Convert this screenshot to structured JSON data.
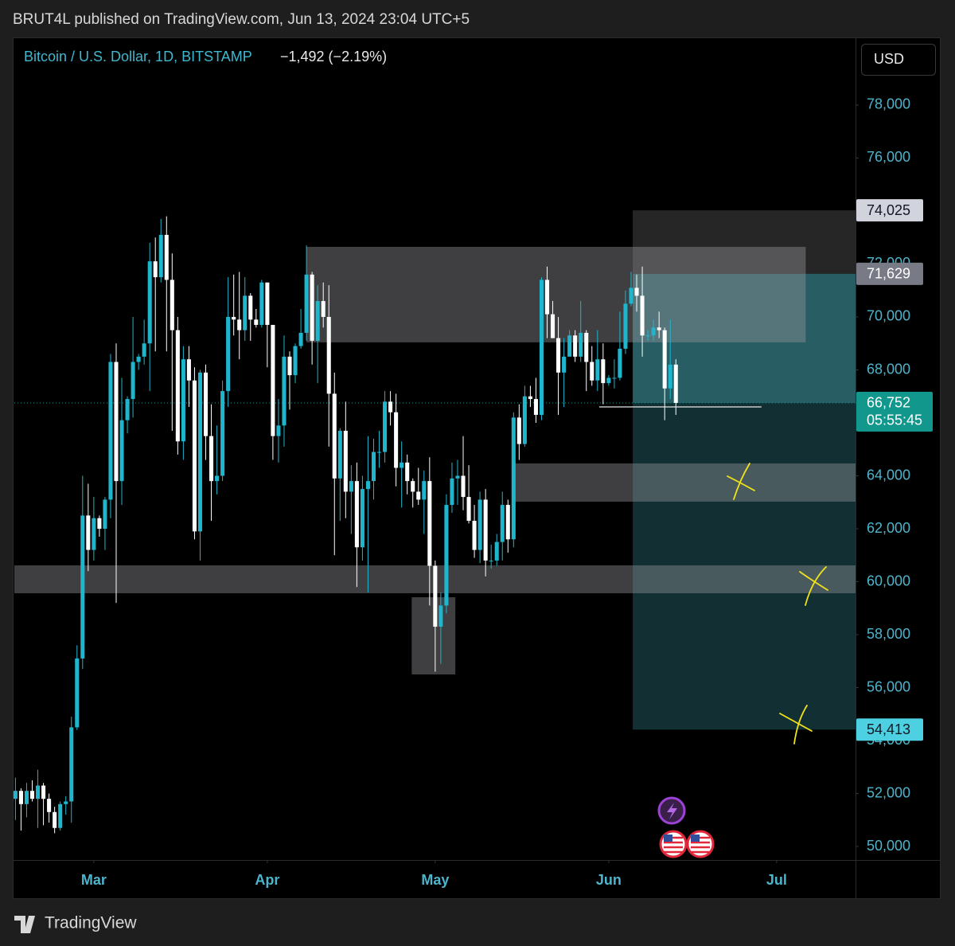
{
  "header": {
    "publisher_line": "BRUT4L published on TradingView.com, Jun 13, 2024 23:04 UTC+5"
  },
  "chart_data": {
    "type": "candlestick",
    "title": "Bitcoin / U.S. Dollar, 1D, BITSTAMP",
    "subtitle": "−1,492 (−2.19%)",
    "currency": "USD",
    "up_color": "#1fb5cc",
    "down_color": "#ffffff",
    "open": [
      51800,
      52100,
      51600,
      52100,
      51800,
      52300,
      51800,
      51300,
      50700,
      51600,
      51700,
      54500,
      57100,
      62500,
      61200,
      62400,
      62000,
      63100,
      68300,
      63800,
      66100,
      66900,
      68300,
      68500,
      69000,
      72100,
      71500,
      73100,
      71400,
      69500,
      65300,
      68400,
      67600,
      61900,
      67900,
      65500,
      63800,
      64000,
      67200,
      70000,
      69900,
      69500,
      70800,
      69900,
      69700,
      71300,
      69700,
      65500,
      65900,
      68500,
      67800,
      68900,
      69400,
      71600,
      69100,
      70600,
      70000,
      67100,
      63900,
      65700,
      63400,
      63800,
      61300,
      63500,
      63800,
      64900,
      64900,
      66800,
      66400,
      64300,
      64500,
      63800,
      63400,
      63100,
      63800,
      60600,
      58300,
      59100,
      62900,
      63900,
      64000,
      63200,
      62300,
      61200,
      63100,
      60800,
      60800,
      61500,
      62900,
      61600,
      66200,
      65200,
      67000,
      66900,
      66300,
      71400,
      70100,
      69200,
      67900,
      68500,
      69300,
      68500,
      69400,
      68300,
      67600,
      68400,
      67500,
      67700,
      67700,
      68800,
      70500,
      71100,
      70800,
      69300,
      69300,
      69600,
      69500,
      67300,
      68200
    ],
    "high": [
      52600,
      52200,
      52400,
      52500,
      52900,
      52400,
      52000,
      51500,
      51700,
      51900,
      54900,
      57600,
      64000,
      63700,
      63200,
      62500,
      63200,
      68600,
      69000,
      67700,
      67000,
      70000,
      68600,
      69900,
      72800,
      73000,
      73700,
      73800,
      72400,
      70000,
      68900,
      68900,
      68100,
      68000,
      68200,
      66700,
      65900,
      67600,
      71500,
      71600,
      71700,
      71500,
      70900,
      70300,
      71400,
      71300,
      69700,
      66900,
      69300,
      68700,
      69000,
      70300,
      72700,
      71700,
      71200,
      71300,
      71200,
      67900,
      65800,
      66800,
      64400,
      64500,
      64000,
      65500,
      65400,
      65700,
      67200,
      67200,
      67100,
      65300,
      64800,
      63900,
      64300,
      64200,
      64700,
      60800,
      59600,
      63300,
      64500,
      64600,
      65500,
      64400,
      62900,
      63400,
      63500,
      61400,
      61800,
      63400,
      63100,
      66400,
      66700,
      67400,
      67400,
      67700,
      71500,
      71900,
      70600,
      70000,
      69200,
      69500,
      69500,
      70600,
      69500,
      68900,
      69500,
      69000,
      67800,
      68400,
      70200,
      71000,
      71700,
      71600,
      71900,
      69500,
      69900,
      70200,
      69600,
      69900,
      68400
    ],
    "low": [
      51000,
      50600,
      51100,
      51700,
      50700,
      50800,
      50900,
      50500,
      50600,
      51200,
      50900,
      54400,
      56700,
      60400,
      60800,
      61700,
      61200,
      62400,
      59200,
      62900,
      65600,
      66200,
      68000,
      68200,
      67200,
      68700,
      71300,
      68700,
      65700,
      64800,
      64600,
      66600,
      61600,
      60800,
      64600,
      62300,
      63300,
      63800,
      66600,
      69300,
      68400,
      69100,
      69100,
      69600,
      69600,
      68100,
      64600,
      64500,
      65100,
      66500,
      67500,
      68800,
      69100,
      68200,
      67500,
      69600,
      65100,
      61000,
      62300,
      62400,
      61800,
      59800,
      60800,
      59600,
      63100,
      64300,
      64500,
      65900,
      63600,
      62800,
      63300,
      62800,
      62900,
      61800,
      59100,
      56600,
      56900,
      58800,
      62600,
      62900,
      62700,
      62200,
      60900,
      60700,
      60200,
      60500,
      60600,
      60800,
      61100,
      61300,
      64600,
      65100,
      66600,
      66000,
      66100,
      69200,
      69200,
      66300,
      66600,
      68500,
      68300,
      68300,
      67200,
      67400,
      67200,
      66700,
      67400,
      67300,
      67600,
      68600,
      70400,
      70200,
      68500,
      69100,
      69100,
      69200,
      66100,
      66900,
      66300
    ],
    "close": [
      52100,
      51600,
      52100,
      51800,
      52300,
      51800,
      51300,
      50700,
      51600,
      51700,
      54500,
      57100,
      62500,
      61200,
      62400,
      62000,
      63100,
      68300,
      63800,
      66100,
      66900,
      68300,
      68500,
      69000,
      72100,
      71500,
      73100,
      71400,
      69500,
      65300,
      68400,
      67600,
      61900,
      67900,
      65500,
      63800,
      64000,
      67200,
      70000,
      69900,
      69500,
      70800,
      69900,
      69700,
      71300,
      69700,
      65500,
      65900,
      68500,
      67800,
      68900,
      69400,
      71600,
      69100,
      70600,
      70000,
      67100,
      63900,
      65700,
      63400,
      63800,
      61300,
      63500,
      63800,
      64900,
      64900,
      66800,
      66400,
      64300,
      64500,
      63800,
      63400,
      63100,
      63800,
      60600,
      58300,
      59100,
      62900,
      63900,
      64000,
      63200,
      62300,
      61200,
      63100,
      60800,
      60800,
      61500,
      62900,
      61600,
      66200,
      65200,
      67000,
      66900,
      66300,
      71400,
      70100,
      69200,
      67900,
      68500,
      69300,
      68500,
      69400,
      68300,
      67600,
      68400,
      67500,
      67700,
      67700,
      68800,
      70500,
      71100,
      70800,
      69300,
      69300,
      69600,
      69500,
      67300,
      68200,
      66752
    ],
    "last_price_label": "66,752",
    "countdown": "05:55:45",
    "xlim": [
      -0.2,
      150.1
    ],
    "xticks": [
      {
        "value": 14,
        "label": "Mar"
      },
      {
        "value": 45,
        "label": "Apr"
      },
      {
        "value": 75,
        "label": "May"
      },
      {
        "value": 106,
        "label": "Jun"
      },
      {
        "value": 136,
        "label": "Jul"
      }
    ],
    "ylim": [
      49489,
      80466
    ],
    "yticks": [
      {
        "value": 50000,
        "label": "50,000"
      },
      {
        "value": 52000,
        "label": "52,000"
      },
      {
        "value": 54000,
        "label": "54,000"
      },
      {
        "value": 56000,
        "label": "56,000"
      },
      {
        "value": 58000,
        "label": "58,000"
      },
      {
        "value": 60000,
        "label": "60,000"
      },
      {
        "value": 62000,
        "label": "62,000"
      },
      {
        "value": 64000,
        "label": "64,000"
      },
      {
        "value": 66000,
        "label": "66,000"
      },
      {
        "value": 68000,
        "label": "68,000"
      },
      {
        "value": 70000,
        "label": "70,000"
      },
      {
        "value": 72000,
        "label": "72,000"
      },
      {
        "value": 74000,
        "label": "74,000"
      },
      {
        "value": 76000,
        "label": "76,000"
      },
      {
        "value": 78000,
        "label": "78,000"
      }
    ],
    "zones": [
      {
        "x": [
          52,
          141.2
        ],
        "y": [
          69040,
          72647
        ]
      },
      {
        "x": [
          89,
          150.1
        ],
        "y": [
          63023,
          64466
        ]
      },
      {
        "x": [
          -0.2,
          150.1
        ],
        "y": [
          59564,
          60617
        ]
      },
      {
        "x": [
          70.8,
          78.6
        ],
        "y": [
          56497,
          59414
        ]
      }
    ],
    "level_line": {
      "x": [
        104.3,
        133.3
      ],
      "y": 66602
    },
    "position": {
      "x": [
        110.3,
        150.1
      ],
      "levels": [
        {
          "value": 74025,
          "label": "74,025",
          "color": "#d1d4dc"
        },
        {
          "value": 71629,
          "label": "71,629",
          "color": "#787b86"
        },
        {
          "value": 54413,
          "label": "54,413",
          "color": "#4dd0e1"
        }
      ]
    }
  },
  "footer": {
    "brand": "TradingView"
  }
}
